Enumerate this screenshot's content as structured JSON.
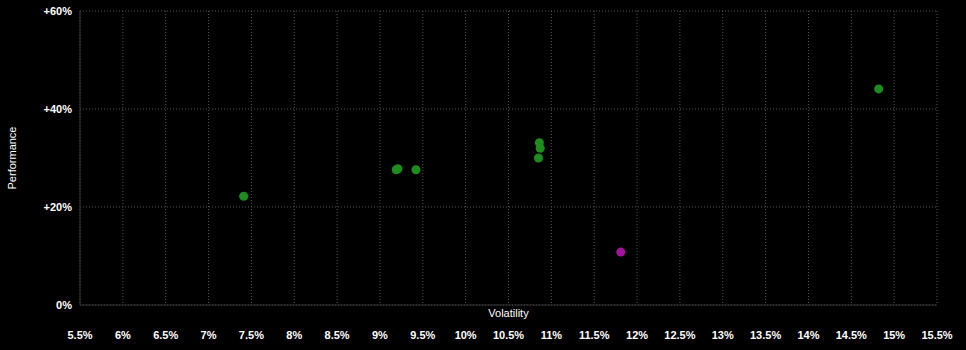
{
  "chart_data": {
    "type": "scatter",
    "x_label": "Volatility",
    "y_label": "Performance",
    "xlim": [
      5.5,
      15.5
    ],
    "ylim": [
      0,
      60
    ],
    "xticks": [
      {
        "value": 5.5,
        "label": "5.5%"
      },
      {
        "value": 6,
        "label": "6%"
      },
      {
        "value": 6.5,
        "label": "6.5%"
      },
      {
        "value": 7,
        "label": "7%"
      },
      {
        "value": 7.5,
        "label": "7.5%"
      },
      {
        "value": 8,
        "label": "8%"
      },
      {
        "value": 8.5,
        "label": "8.5%"
      },
      {
        "value": 9,
        "label": "9%"
      },
      {
        "value": 9.5,
        "label": "9.5%"
      },
      {
        "value": 10,
        "label": "10%"
      },
      {
        "value": 10.5,
        "label": "10.5%"
      },
      {
        "value": 11,
        "label": "11%"
      },
      {
        "value": 11.5,
        "label": "11.5%"
      },
      {
        "value": 12,
        "label": "12%"
      },
      {
        "value": 12.5,
        "label": "12.5%"
      },
      {
        "value": 13,
        "label": "13%"
      },
      {
        "value": 13.5,
        "label": "13.5%"
      },
      {
        "value": 14,
        "label": "14%"
      },
      {
        "value": 14.5,
        "label": "14.5%"
      },
      {
        "value": 15,
        "label": "15%"
      },
      {
        "value": 15.5,
        "label": "15.5%"
      }
    ],
    "yticks": [
      {
        "value": 0,
        "label": "0%"
      },
      {
        "value": 20,
        "label": "+20%"
      },
      {
        "value": 40,
        "label": "+40%"
      },
      {
        "value": 60,
        "label": "+60%"
      }
    ],
    "grid": true,
    "series": [
      {
        "color": "#1e8c1e",
        "x": [
          7.41,
          9.19,
          9.21,
          9.42,
          10.86,
          10.87,
          10.85,
          14.82
        ],
        "values": [
          22.2,
          27.6,
          27.8,
          27.6,
          33.1,
          32.0,
          30.0,
          44.1
        ]
      },
      {
        "color": "#a0149c",
        "x": [
          11.81
        ],
        "values": [
          10.8
        ]
      }
    ]
  }
}
